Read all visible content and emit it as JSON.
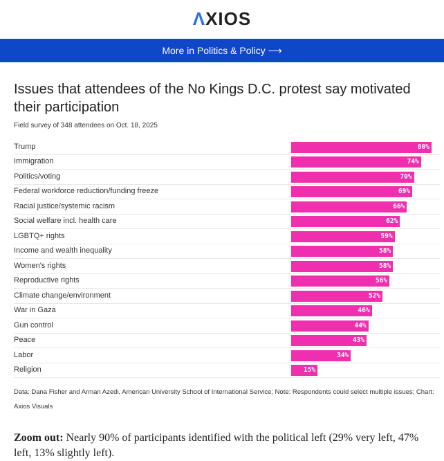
{
  "header": {
    "logo": "AXIOS",
    "banner": "More in Politics & Policy ⟶"
  },
  "chart_data": {
    "type": "bar",
    "title": "Issues that attendees of the No Kings D.C. protest say motivated their participation",
    "subtitle": "Field survey of 348 attendees on Oct. 18, 2025",
    "categories": [
      "Trump",
      "Immigration",
      "Politics/voting",
      "Federal workforce reduction/funding freeze",
      "Racial justice/systemic racism",
      "Social welfare incl. health care",
      "LGBTQ+ rights",
      "Income and wealth inequality",
      "Women's rights",
      "Reproductive rights",
      "Climate change/environment",
      "War in Gaza",
      "Gun control",
      "Peace",
      "Labor",
      "Religion"
    ],
    "values": [
      80,
      74,
      70,
      69,
      66,
      62,
      59,
      58,
      58,
      56,
      52,
      46,
      44,
      43,
      34,
      15
    ],
    "labels": [
      "80%",
      "74%",
      "70%",
      "69%",
      "66%",
      "62%",
      "59%",
      "58%",
      "58%",
      "56%",
      "52%",
      "46%",
      "44%",
      "43%",
      "34%",
      "15%"
    ],
    "xlim": [
      0,
      100
    ],
    "color": "#ef2fae",
    "note": "Data: Dana Fisher and Arman Azedi, American University School of International Service; Note: Respondents could select multiple issues; Chart: Axios Visuals"
  },
  "article": {
    "lead": "Zoom out:",
    "text": " Nearly 90% of participants identified with the political left (29% very left, 47% left, 13% slightly left)."
  }
}
